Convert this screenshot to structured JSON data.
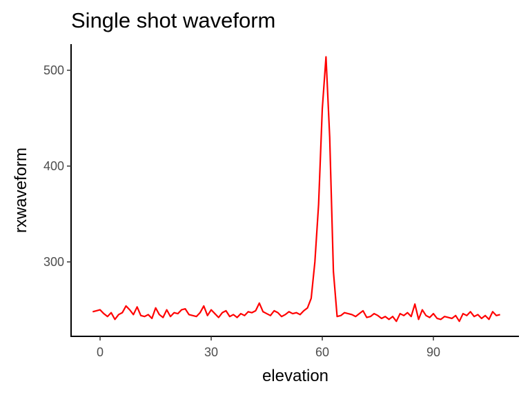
{
  "chart_data": {
    "type": "line",
    "title": "Single shot waveform",
    "x_label": "elevation",
    "y_label": "rxwaveform",
    "x": [
      -2,
      -1,
      0,
      1,
      2,
      3,
      4,
      5,
      6,
      7,
      8,
      9,
      10,
      11,
      12,
      13,
      14,
      15,
      16,
      17,
      18,
      19,
      20,
      21,
      22,
      23,
      24,
      25,
      26,
      27,
      28,
      29,
      30,
      31,
      32,
      33,
      34,
      35,
      36,
      37,
      38,
      39,
      40,
      41,
      42,
      43,
      44,
      45,
      46,
      47,
      48,
      49,
      50,
      51,
      52,
      53,
      54,
      55,
      56,
      57,
      58,
      59,
      60,
      61,
      62,
      63,
      64,
      65,
      66,
      67,
      68,
      69,
      70,
      71,
      72,
      73,
      74,
      75,
      76,
      77,
      78,
      79,
      80,
      81,
      82,
      83,
      84,
      85,
      86,
      87,
      88,
      89,
      90,
      91,
      92,
      93,
      94,
      95,
      96,
      97,
      98,
      99,
      100,
      101,
      102,
      103,
      104,
      105,
      106,
      107,
      108
    ],
    "series": [
      {
        "name": "rxwaveform",
        "color": "#ff0000",
        "values": [
          248,
          249,
          250,
          246,
          243,
          247,
          240,
          245,
          247,
          254,
          250,
          245,
          253,
          244,
          243,
          245,
          241,
          252,
          245,
          242,
          250,
          243,
          247,
          246,
          250,
          251,
          245,
          244,
          243,
          247,
          254,
          244,
          250,
          246,
          242,
          247,
          249,
          243,
          245,
          242,
          246,
          244,
          248,
          247,
          249,
          257,
          248,
          246,
          244,
          249,
          247,
          243,
          245,
          248,
          246,
          247,
          245,
          249,
          252,
          262,
          300,
          360,
          460,
          514,
          430,
          290,
          243,
          244,
          247,
          246,
          245,
          243,
          246,
          249,
          242,
          243,
          246,
          244,
          241,
          243,
          240,
          243,
          238,
          246,
          244,
          247,
          243,
          256,
          240,
          250,
          244,
          242,
          246,
          241,
          240,
          243,
          242,
          241,
          244,
          238,
          246,
          244,
          248,
          243,
          245,
          241,
          244,
          240,
          248,
          244,
          245
        ]
      }
    ],
    "xlim": [
      -7.83,
      113.1
    ],
    "ylim": [
      222.3,
      527.3
    ],
    "xticks": [
      0,
      30,
      60,
      90
    ],
    "yticks": [
      300,
      400,
      500
    ]
  }
}
